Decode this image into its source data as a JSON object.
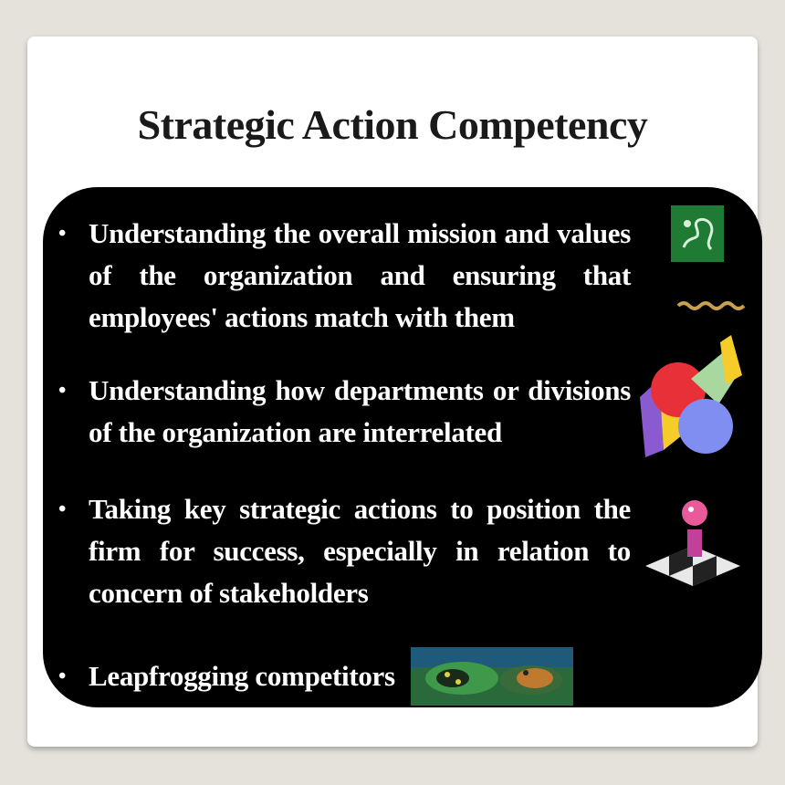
{
  "slide": {
    "title": "Strategic Action Competency",
    "bullets": [
      "Understanding the overall mission and values of the organization and ensuring that employees' actions match with them",
      "Understanding how departments or divisions of the organization are interrelated",
      "Taking key strategic actions to position the firm for success, especially in relation to concern of stakeholders",
      "Leapfrogging competitors"
    ],
    "bullet_glyph": "•"
  },
  "icons": [
    "mission-clipart-icon",
    "pie-chart-clipart-icon",
    "chess-piece-clipart-icon",
    "frogs-photo-icon"
  ]
}
